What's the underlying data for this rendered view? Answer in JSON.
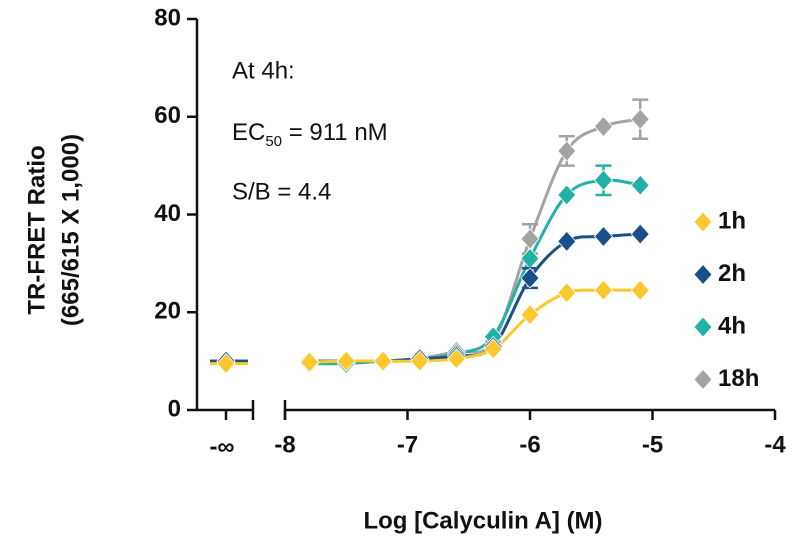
{
  "chart_data": {
    "type": "scatter",
    "x_label": "Log [Calyculin A] (M)",
    "y_label": [
      "TR-FRET Ratio",
      "(665/615 X 1,000)"
    ],
    "annotations": {
      "line1": "At 4h:",
      "ec50": {
        "base": "EC",
        "sub": "50",
        "rest": " = 911 nM"
      },
      "line3": "S/B = 4.4"
    },
    "x": [
      -7.8,
      -7.5,
      -7.2,
      -6.9,
      -6.6,
      -6.3,
      -6,
      -5.7,
      -5.4,
      -5.1
    ],
    "x_break_label": "-∞",
    "xlim": [
      -8,
      -4
    ],
    "xticks": [
      -8,
      -7,
      -6,
      -5,
      -4
    ],
    "ylim": [
      0,
      80
    ],
    "yticks": [
      0,
      20,
      40,
      60,
      80
    ],
    "series": [
      {
        "name": "1h",
        "color": "#fdc82f",
        "value_at_break": 9.5,
        "values": [
          9.8,
          10,
          10,
          10,
          10.5,
          12.5,
          19.5,
          24,
          24.5,
          24.5
        ],
        "errors": [
          null,
          null,
          null,
          null,
          null,
          null,
          null,
          null,
          null,
          null
        ]
      },
      {
        "name": "2h",
        "color": "#1b4f8a",
        "value_at_break": 10,
        "values": [
          10,
          10,
          10,
          10.5,
          11,
          13,
          27,
          34.5,
          35.5,
          36
        ],
        "errors": [
          null,
          null,
          null,
          null,
          null,
          null,
          2,
          null,
          null,
          null
        ]
      },
      {
        "name": "4h",
        "color": "#22b2a5",
        "value_at_break": 10,
        "values": [
          9.5,
          9.5,
          10,
          10.5,
          11.5,
          15,
          31,
          44,
          47,
          46
        ],
        "errors": [
          null,
          null,
          null,
          null,
          null,
          null,
          null,
          null,
          3,
          null
        ]
      },
      {
        "name": "18h",
        "color": "#a3a3a3",
        "value_at_break": 10,
        "values": [
          10,
          10,
          10,
          10.5,
          12,
          14,
          35,
          53,
          58,
          59.5
        ],
        "errors": [
          null,
          null,
          null,
          null,
          null,
          null,
          3,
          3,
          null,
          4
        ]
      }
    ]
  }
}
